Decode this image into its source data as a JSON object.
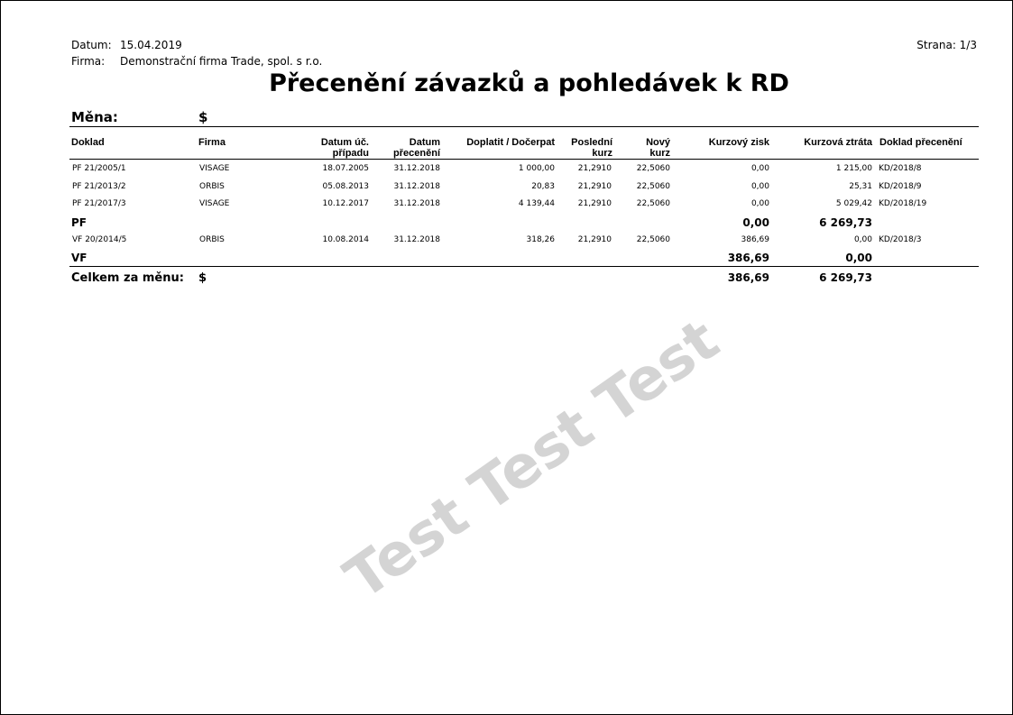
{
  "header": {
    "datum_label": "Datum:",
    "datum_value": "15.04.2019",
    "firma_label": "Firma:",
    "firma_value": "Demonstrační firma Trade, spol. s r.o.",
    "strana": "Strana: 1/3",
    "title": "Přecenění závazků a pohledávek k RD"
  },
  "mena": {
    "label": "Měna:",
    "value": "$"
  },
  "columns": {
    "doklad": "Doklad",
    "firma": "Firma",
    "datum_uc_1": "Datum úč.",
    "datum_uc_2": "případu",
    "datum_prec_1": "Datum",
    "datum_prec_2": "přecenění",
    "doplatit": "Doplatit / Dočerpat",
    "posledni_1": "Poslední",
    "posledni_2": "kurz",
    "novy_1": "Nový",
    "novy_2": "kurz",
    "zisk": "Kurzový zisk",
    "ztrata": "Kurzová ztráta",
    "doklad_prec": "Doklad přecenění"
  },
  "groups": [
    {
      "name": "PF",
      "rows": [
        {
          "doklad": "PF  21/2005/1",
          "firma": "VISAGE",
          "datum_uc": "18.07.2005",
          "datum_prec": "31.12.2018",
          "doplatit": "1 000,00",
          "posledni": "21,2910",
          "novy": "22,5060",
          "zisk": "0,00",
          "ztrata": "1 215,00",
          "doklad_prec": "KD/2018/8"
        },
        {
          "doklad": "PF  21/2013/2",
          "firma": "ORBIS",
          "datum_uc": "05.08.2013",
          "datum_prec": "31.12.2018",
          "doplatit": "20,83",
          "posledni": "21,2910",
          "novy": "22,5060",
          "zisk": "0,00",
          "ztrata": "25,31",
          "doklad_prec": "KD/2018/9"
        },
        {
          "doklad": "PF  21/2017/3",
          "firma": "VISAGE",
          "datum_uc": "10.12.2017",
          "datum_prec": "31.12.2018",
          "doplatit": "4 139,44",
          "posledni": "21,2910",
          "novy": "22,5060",
          "zisk": "0,00",
          "ztrata": "5 029,42",
          "doklad_prec": "KD/2018/19"
        }
      ],
      "total_zisk": "0,00",
      "total_ztrata": "6 269,73"
    },
    {
      "name": "VF",
      "rows": [
        {
          "doklad": "VF  20/2014/5",
          "firma": "ORBIS",
          "datum_uc": "10.08.2014",
          "datum_prec": "31.12.2018",
          "doplatit": "318,26",
          "posledni": "21,2910",
          "novy": "22,5060",
          "zisk": "386,69",
          "ztrata": "0,00",
          "doklad_prec": "KD/2018/3"
        }
      ],
      "total_zisk": "386,69",
      "total_ztrata": "0,00"
    }
  ],
  "total": {
    "label": "Celkem za měnu:",
    "currency": "$",
    "zisk": "386,69",
    "ztrata": "6 269,73"
  },
  "watermark": "Test Test Test"
}
